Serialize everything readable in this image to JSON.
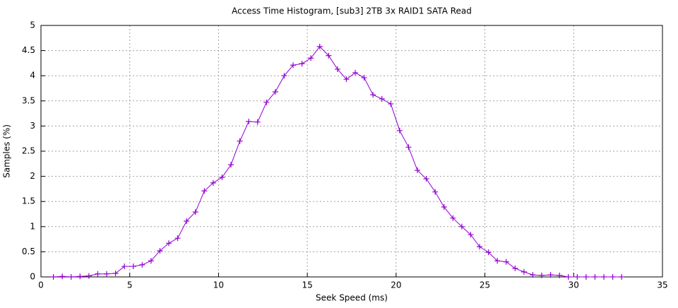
{
  "chart_data": {
    "type": "line",
    "title": "Access Time Histogram, [sub3] 2TB 3x RAID1 SATA Read",
    "x_label": "Seek Speed (ms)",
    "y_label": "Samples (%)",
    "xlim": [
      0,
      35
    ],
    "ylim": [
      0,
      5
    ],
    "xticks": [
      0,
      5,
      10,
      15,
      20,
      25,
      30,
      35
    ],
    "yticks": [
      0,
      0.5,
      1,
      1.5,
      2,
      2.5,
      3,
      3.5,
      4,
      4.5,
      5
    ],
    "grid": true,
    "series": [
      {
        "color": "#9400d3",
        "x": [
          0.7,
          1.2,
          1.7,
          2.2,
          2.7,
          3.2,
          3.7,
          4.2,
          4.7,
          5.2,
          5.7,
          6.2,
          6.7,
          7.2,
          7.7,
          8.2,
          8.7,
          9.2,
          9.7,
          10.2,
          10.7,
          11.2,
          11.7,
          12.2,
          12.7,
          13.2,
          13.7,
          14.2,
          14.7,
          15.2,
          15.7,
          16.2,
          16.7,
          17.2,
          17.7,
          18.2,
          18.7,
          19.2,
          19.7,
          20.2,
          20.7,
          21.2,
          21.7,
          22.2,
          22.7,
          23.2,
          23.7,
          24.2,
          24.7,
          25.2,
          25.7,
          26.2,
          26.7,
          27.2,
          27.7,
          28.2,
          28.7,
          29.2,
          29.7,
          30.2,
          30.7,
          31.2,
          31.7,
          32.2,
          32.7
        ],
        "values": [
          0,
          0.01,
          0,
          0.01,
          0.02,
          0.06,
          0.06,
          0.07,
          0.21,
          0.21,
          0.24,
          0.32,
          0.52,
          0.67,
          0.77,
          1.11,
          1.29,
          1.71,
          1.87,
          1.98,
          2.23,
          2.7,
          3.09,
          3.08,
          3.47,
          3.68,
          4.0,
          4.21,
          4.24,
          4.35,
          4.58,
          4.4,
          4.13,
          3.93,
          4.06,
          3.96,
          3.62,
          3.54,
          3.44,
          2.91,
          2.58,
          2.12,
          1.95,
          1.69,
          1.39,
          1.17,
          1.0,
          0.84,
          0.6,
          0.49,
          0.32,
          0.3,
          0.17,
          0.1,
          0.04,
          0.03,
          0.04,
          0.03,
          0,
          0,
          0,
          0,
          0,
          0,
          0
        ]
      }
    ]
  }
}
